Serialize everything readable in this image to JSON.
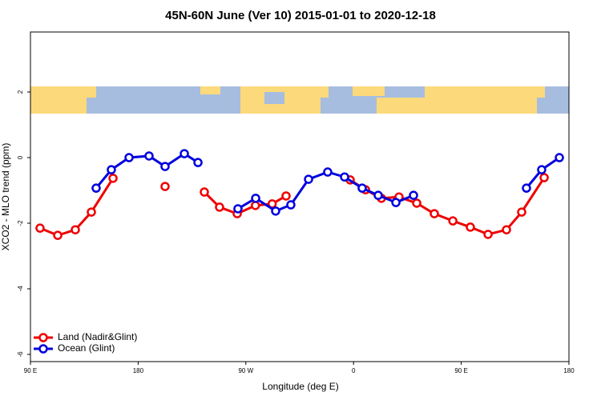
{
  "chart_data": {
    "type": "line",
    "title": "45N-60N June (Ver 10)   2015-01-01 to 2020-12-18",
    "xlabel": "Longitude (deg E)",
    "ylabel": "XCO2 - MLO trend (ppm)",
    "xlim": [
      90,
      540
    ],
    "ylim": [
      -6.22,
      3.83
    ],
    "xticks": [
      {
        "value": 90,
        "label": "90 E"
      },
      {
        "value": 180,
        "label": "180"
      },
      {
        "value": 270,
        "label": "90 W"
      },
      {
        "value": 360,
        "label": "0"
      },
      {
        "value": 450,
        "label": "90 E"
      },
      {
        "value": 540,
        "label": "180"
      }
    ],
    "yticks": [
      -6,
      -4,
      -2,
      0,
      2
    ],
    "legend": "bottom-left",
    "series": [
      {
        "name": "Land (Nadir&Glint)",
        "color": "#ee0000",
        "x": [
          98,
          112.8,
          127.5,
          140.9,
          159,
          null,
          202.5,
          null,
          235.3,
          248,
          262.8,
          278,
          292,
          303.6,
          null,
          357.2,
          370,
          383.3,
          398,
          412.8,
          427.5,
          443,
          457.6,
          472.4,
          487.8,
          500.5,
          519.3
        ],
        "values": [
          -2.15,
          -2.37,
          -2.2,
          -1.66,
          -0.63,
          null,
          -0.88,
          null,
          -1.05,
          -1.51,
          -1.71,
          -1.46,
          -1.41,
          -1.17,
          null,
          -0.68,
          -0.98,
          -1.24,
          -1.2,
          -1.39,
          -1.71,
          -1.93,
          -2.12,
          -2.34,
          -2.2,
          -1.66,
          -0.61
        ]
      },
      {
        "name": "Ocean (Glint)",
        "color": "#0000dd",
        "x": [
          144.9,
          157.6,
          172.4,
          189.1,
          202.5,
          218.6,
          230,
          null,
          263.4,
          278.2,
          294.9,
          307.6,
          322.4,
          338.4,
          352.5,
          367.2,
          380.6,
          395.4,
          410.1,
          null,
          504.5,
          517.2,
          532
        ],
        "values": [
          -0.93,
          -0.37,
          0,
          0.05,
          -0.27,
          0.12,
          -0.15,
          null,
          -1.56,
          -1.24,
          -1.63,
          -1.44,
          -0.66,
          -0.44,
          -0.59,
          -0.93,
          -1.15,
          -1.37,
          -1.15,
          null,
          -0.93,
          -0.37,
          0
        ]
      }
    ]
  }
}
